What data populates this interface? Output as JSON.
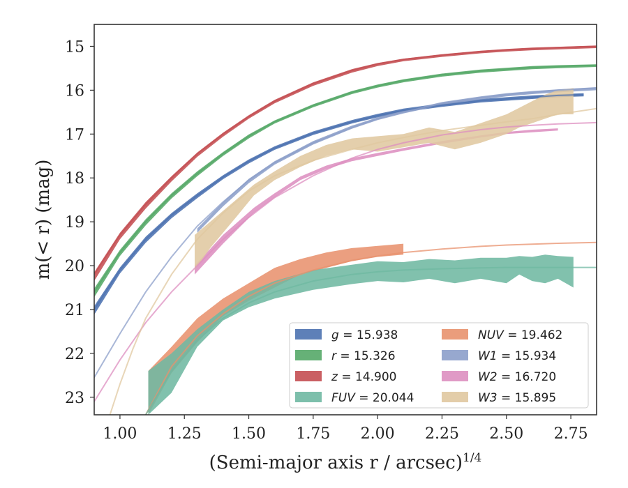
{
  "chart_data": {
    "type": "line",
    "xlabel": "(Semi-major axis r / arcsec)",
    "xlabel_sup": "1/4",
    "ylabel": "m(< r) (mag)",
    "xlim": [
      0.9,
      2.85
    ],
    "ylim": [
      23.4,
      14.5
    ],
    "y_inverted": true,
    "grid": false,
    "legend_position": "lower-right",
    "x_ticks": [
      "1.00",
      "1.25",
      "1.50",
      "1.75",
      "2.00",
      "2.25",
      "2.50",
      "2.75"
    ],
    "x_tick_values": [
      1.0,
      1.25,
      1.5,
      1.75,
      2.0,
      2.25,
      2.5,
      2.75
    ],
    "y_ticks": [
      "15",
      "16",
      "17",
      "18",
      "19",
      "20",
      "21",
      "22",
      "23"
    ],
    "y_tick_values": [
      15,
      16,
      17,
      18,
      19,
      20,
      21,
      22,
      23
    ],
    "series": [
      {
        "id": "z",
        "label_var": "z",
        "label_value": "= 14.900",
        "color": "#c44e52",
        "model": {
          "x": [
            0.9,
            1.0,
            1.1,
            1.2,
            1.3,
            1.4,
            1.5,
            1.6,
            1.75,
            1.9,
            2.0,
            2.1,
            2.25,
            2.4,
            2.5,
            2.6,
            2.7,
            2.85
          ],
          "y": [
            20.2,
            19.3,
            18.6,
            18.0,
            17.45,
            17.0,
            16.6,
            16.25,
            15.85,
            15.55,
            15.4,
            15.3,
            15.2,
            15.12,
            15.08,
            15.05,
            15.03,
            15.0
          ]
        },
        "band": {
          "x": [
            0.9,
            1.0,
            1.1,
            1.2,
            1.3,
            1.4,
            1.5,
            1.6,
            1.75,
            1.9,
            2.0,
            2.1,
            2.25,
            2.4,
            2.5,
            2.6,
            2.7,
            2.85
          ],
          "y_low": [
            20.35,
            19.4,
            18.7,
            18.08,
            17.52,
            17.06,
            16.65,
            16.3,
            15.9,
            15.6,
            15.45,
            15.34,
            15.24,
            15.16,
            15.12,
            15.09,
            15.07,
            15.04
          ],
          "y_high": [
            20.15,
            19.25,
            18.55,
            17.96,
            17.42,
            16.97,
            16.57,
            16.22,
            15.82,
            15.52,
            15.38,
            15.28,
            15.18,
            15.1,
            15.06,
            15.03,
            15.01,
            14.98
          ]
        }
      },
      {
        "id": "r",
        "label_var": "r",
        "label_value": "= 15.326",
        "color": "#55a868",
        "model": {
          "x": [
            0.9,
            1.0,
            1.1,
            1.2,
            1.3,
            1.4,
            1.5,
            1.6,
            1.75,
            1.9,
            2.0,
            2.1,
            2.25,
            2.4,
            2.5,
            2.6,
            2.7,
            2.85
          ],
          "y": [
            20.6,
            19.7,
            19.0,
            18.4,
            17.9,
            17.45,
            17.05,
            16.72,
            16.35,
            16.05,
            15.9,
            15.78,
            15.65,
            15.56,
            15.52,
            15.48,
            15.46,
            15.43
          ]
        },
        "band": {
          "x": [
            0.9,
            1.0,
            1.1,
            1.2,
            1.3,
            1.4,
            1.5,
            1.6,
            1.75,
            1.9,
            2.0,
            2.1,
            2.25,
            2.4,
            2.5,
            2.6,
            2.7,
            2.85
          ],
          "y_low": [
            20.72,
            19.78,
            19.08,
            18.47,
            17.96,
            17.5,
            17.1,
            16.76,
            16.39,
            16.09,
            15.94,
            15.82,
            15.69,
            15.6,
            15.56,
            15.52,
            15.5,
            15.47
          ],
          "y_high": [
            20.52,
            19.64,
            18.94,
            18.35,
            17.85,
            17.41,
            17.01,
            16.69,
            16.32,
            16.02,
            15.87,
            15.75,
            15.62,
            15.53,
            15.49,
            15.45,
            15.43,
            15.41
          ]
        }
      },
      {
        "id": "g",
        "label_var": "g",
        "label_value": "= 15.938",
        "color": "#4c72b0",
        "model": {
          "x": [
            0.9,
            1.0,
            1.1,
            1.2,
            1.3,
            1.4,
            1.5,
            1.6,
            1.75,
            1.9,
            2.0,
            2.1,
            2.25,
            2.4,
            2.5,
            2.6,
            2.7,
            2.8
          ],
          "y": [
            21.0,
            20.1,
            19.4,
            18.85,
            18.4,
            17.98,
            17.62,
            17.32,
            16.98,
            16.72,
            16.58,
            16.46,
            16.34,
            16.24,
            16.2,
            16.16,
            16.12,
            16.1
          ]
        },
        "band": {
          "x": [
            0.9,
            1.0,
            1.1,
            1.2,
            1.3,
            1.4,
            1.5,
            1.6,
            1.75,
            1.9,
            2.0,
            2.1,
            2.25,
            2.4,
            2.5,
            2.6,
            2.7,
            2.8
          ],
          "y_low": [
            21.12,
            20.18,
            19.48,
            18.92,
            18.46,
            18.03,
            17.67,
            17.36,
            17.02,
            16.76,
            16.62,
            16.5,
            16.38,
            16.28,
            16.24,
            16.2,
            16.16,
            16.14
          ],
          "y_high": [
            20.92,
            20.04,
            19.34,
            18.8,
            18.35,
            17.94,
            17.58,
            17.28,
            16.94,
            16.68,
            16.54,
            16.42,
            16.3,
            16.2,
            16.16,
            16.12,
            16.09,
            16.07
          ]
        }
      },
      {
        "id": "W1",
        "label_var": "W1",
        "label_value": "= 15.934",
        "color": "#8c9fca",
        "model": {
          "x": [
            0.9,
            1.0,
            1.1,
            1.2,
            1.3,
            1.4,
            1.5,
            1.6,
            1.75,
            1.9,
            2.0,
            2.1,
            2.25,
            2.4,
            2.5,
            2.6,
            2.7,
            2.85
          ],
          "y": [
            22.55,
            21.55,
            20.6,
            19.8,
            19.1,
            18.55,
            18.05,
            17.65,
            17.2,
            16.85,
            16.65,
            16.5,
            16.3,
            16.17,
            16.1,
            16.05,
            16.0,
            15.95
          ]
        },
        "band": {
          "x": [
            1.3,
            1.4,
            1.5,
            1.6,
            1.75,
            1.9,
            2.0,
            2.1,
            2.25,
            2.4,
            2.5,
            2.6,
            2.7,
            2.85
          ],
          "y_low": [
            19.25,
            18.65,
            18.12,
            17.7,
            17.24,
            16.88,
            16.68,
            16.53,
            16.34,
            16.21,
            16.14,
            16.09,
            16.05,
            16.0
          ],
          "y_high": [
            19.15,
            18.55,
            18.02,
            17.62,
            17.16,
            16.81,
            16.62,
            16.47,
            16.27,
            16.14,
            16.07,
            16.02,
            15.98,
            15.93
          ]
        }
      },
      {
        "id": "W2",
        "label_var": "W2",
        "label_value": "= 16.720",
        "color": "#dd8fc0",
        "model": {
          "x": [
            0.9,
            1.0,
            1.1,
            1.2,
            1.3,
            1.4,
            1.5,
            1.6,
            1.75,
            1.9,
            2.0,
            2.1,
            2.25,
            2.4,
            2.5,
            2.6,
            2.7,
            2.85
          ],
          "y": [
            23.1,
            22.15,
            21.3,
            20.6,
            20.0,
            19.4,
            18.9,
            18.45,
            17.95,
            17.55,
            17.35,
            17.2,
            17.02,
            16.9,
            16.84,
            16.8,
            16.77,
            16.74
          ]
        },
        "band": {
          "x": [
            1.29,
            1.4,
            1.52,
            1.6,
            1.7,
            1.8,
            1.9,
            2.0,
            2.1,
            2.25,
            2.4,
            2.5,
            2.6,
            2.7
          ],
          "y_low": [
            20.2,
            19.5,
            18.8,
            18.45,
            18.05,
            17.8,
            17.62,
            17.5,
            17.38,
            17.22,
            17.08,
            17.0,
            16.96,
            16.92
          ],
          "y_high": [
            20.0,
            19.3,
            18.68,
            18.35,
            17.97,
            17.72,
            17.55,
            17.43,
            17.32,
            17.16,
            17.03,
            16.95,
            16.9,
            16.87
          ]
        }
      },
      {
        "id": "W3",
        "label_var": "W3",
        "label_value": "= 15.895",
        "color": "#e0c8a0",
        "model": {
          "x": [
            0.95,
            1.0,
            1.05,
            1.1,
            1.2,
            1.3,
            1.4,
            1.5,
            1.6,
            1.75,
            1.9,
            2.0,
            2.1,
            2.25,
            2.4,
            2.5,
            2.6,
            2.7,
            2.85
          ],
          "y": [
            23.6,
            22.7,
            21.9,
            21.2,
            20.2,
            19.4,
            18.8,
            18.3,
            17.95,
            17.6,
            17.35,
            17.2,
            17.08,
            16.92,
            16.8,
            16.72,
            16.65,
            16.55,
            16.42
          ]
        },
        "band": {
          "x": [
            1.29,
            1.35,
            1.45,
            1.52,
            1.6,
            1.7,
            1.8,
            1.9,
            2.0,
            2.1,
            2.2,
            2.3,
            2.4,
            2.5,
            2.55,
            2.6,
            2.65,
            2.7,
            2.76
          ],
          "y_low": [
            20.1,
            19.6,
            18.9,
            18.4,
            18.05,
            17.75,
            17.5,
            17.35,
            17.4,
            17.3,
            17.2,
            17.35,
            17.2,
            17.0,
            16.85,
            16.75,
            16.65,
            16.55,
            16.55
          ],
          "y_high": [
            19.3,
            19.0,
            18.5,
            18.15,
            17.85,
            17.5,
            17.25,
            17.1,
            17.05,
            17.0,
            16.85,
            16.95,
            16.75,
            16.55,
            16.4,
            16.25,
            16.1,
            16.0,
            15.95
          ]
        }
      },
      {
        "id": "NUV",
        "label_var": "NUV",
        "label_value": "= 19.462",
        "color": "#e8926e",
        "model": {
          "x": [
            1.1,
            1.2,
            1.3,
            1.4,
            1.5,
            1.6,
            1.75,
            1.9,
            2.0,
            2.1,
            2.25,
            2.4,
            2.5,
            2.6,
            2.7,
            2.85
          ],
          "y": [
            23.4,
            22.3,
            21.6,
            21.1,
            20.7,
            20.4,
            20.1,
            19.88,
            19.78,
            19.7,
            19.62,
            19.56,
            19.53,
            19.51,
            19.49,
            19.47
          ]
        },
        "band": {
          "x": [
            1.11,
            1.2,
            1.3,
            1.4,
            1.5,
            1.6,
            1.7,
            1.8,
            1.9,
            2.0,
            2.1
          ],
          "y_low": [
            23.4,
            22.45,
            21.75,
            21.15,
            20.8,
            20.5,
            20.2,
            20.05,
            19.9,
            19.8,
            19.75
          ],
          "y_high": [
            22.4,
            21.85,
            21.2,
            20.75,
            20.4,
            20.05,
            19.85,
            19.7,
            19.6,
            19.55,
            19.5
          ]
        }
      },
      {
        "id": "FUV",
        "label_var": "FUV",
        "label_value": "= 20.044",
        "color": "#6fb8a2",
        "model": {
          "x": [
            1.1,
            1.2,
            1.3,
            1.4,
            1.5,
            1.6,
            1.75,
            1.9,
            2.0,
            2.1,
            2.25,
            2.4,
            2.5,
            2.6,
            2.7,
            2.85
          ],
          "y": [
            23.4,
            22.4,
            21.7,
            21.2,
            20.85,
            20.6,
            20.35,
            20.2,
            20.14,
            20.1,
            20.07,
            20.05,
            20.04,
            20.04,
            20.04,
            20.04
          ]
        },
        "band": {
          "x": [
            1.11,
            1.2,
            1.3,
            1.4,
            1.5,
            1.6,
            1.75,
            1.9,
            2.0,
            2.1,
            2.2,
            2.3,
            2.4,
            2.5,
            2.55,
            2.6,
            2.65,
            2.7,
            2.76
          ],
          "y_low": [
            23.4,
            22.9,
            21.85,
            21.25,
            20.95,
            20.75,
            20.55,
            20.42,
            20.35,
            20.38,
            20.3,
            20.4,
            20.3,
            20.4,
            20.2,
            20.35,
            20.4,
            20.3,
            20.5
          ],
          "y_high": [
            22.4,
            22.0,
            21.45,
            21.0,
            20.6,
            20.35,
            20.1,
            19.98,
            19.9,
            19.92,
            19.85,
            19.88,
            19.82,
            19.82,
            19.78,
            19.8,
            19.75,
            19.78,
            19.8
          ]
        }
      }
    ],
    "legend": [
      {
        "series": "g",
        "var": "g",
        "value": "= 15.938"
      },
      {
        "series": "NUV",
        "var": "NUV",
        "value": "= 19.462"
      },
      {
        "series": "r",
        "var": "r",
        "value": "= 15.326"
      },
      {
        "series": "W1",
        "var": "W1",
        "value": "= 15.934"
      },
      {
        "series": "z",
        "var": "z",
        "value": "= 14.900"
      },
      {
        "series": "W2",
        "var": "W2",
        "value": "= 16.720"
      },
      {
        "series": "FUV",
        "var": "FUV",
        "value": "= 20.044"
      },
      {
        "series": "W3",
        "var": "W3",
        "value": "= 15.895"
      }
    ]
  }
}
